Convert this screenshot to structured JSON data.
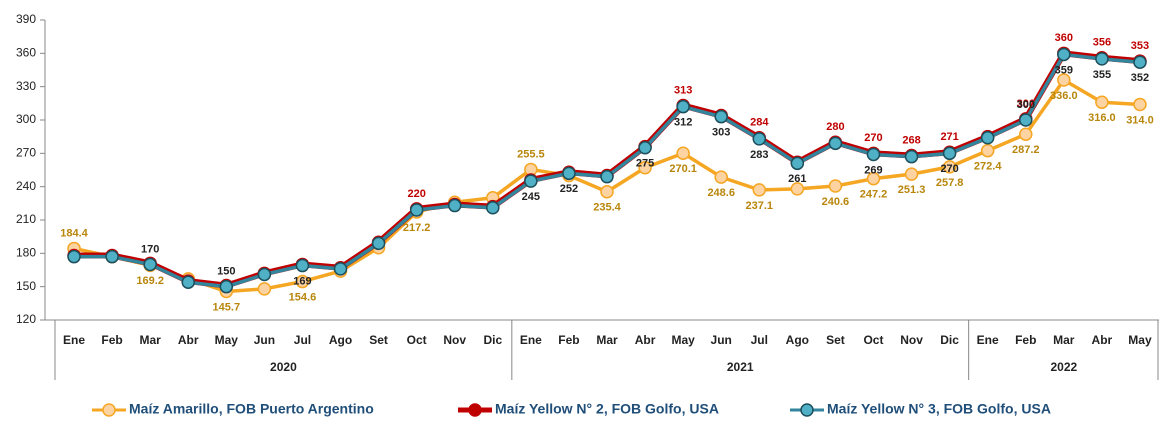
{
  "chart_data": {
    "type": "line",
    "categories": [
      "Ene",
      "Feb",
      "Mar",
      "Abr",
      "May",
      "Jun",
      "Jul",
      "Ago",
      "Set",
      "Oct",
      "Nov",
      "Dic",
      "Ene",
      "Feb",
      "Mar",
      "Abr",
      "May",
      "Jun",
      "Jul",
      "Ago",
      "Set",
      "Oct",
      "Nov",
      "Dic",
      "Ene",
      "Feb",
      "Mar",
      "Abr",
      "May"
    ],
    "year_groups": [
      {
        "label": "2020",
        "months": 12
      },
      {
        "label": "2021",
        "months": 12
      },
      {
        "label": "2022",
        "months": 5
      }
    ],
    "ylim": [
      120,
      390
    ],
    "yticks": [
      120,
      150,
      180,
      210,
      240,
      270,
      300,
      330,
      360,
      390
    ],
    "grid": false,
    "legend": "bottom",
    "series": [
      {
        "name": "Maíz Amarillo, FOB Puerto Argentino",
        "color": "#f5a623",
        "marker_fill": "#fcd3a1",
        "label_color": "#b8860b",
        "values": [
          184.4,
          177,
          169.2,
          157,
          145.7,
          148,
          154.6,
          164,
          185,
          217.2,
          226,
          230,
          255.5,
          250,
          235.4,
          257,
          270.1,
          248.6,
          237.1,
          238,
          240.6,
          247.2,
          251.3,
          257.8,
          272.4,
          287.2,
          336.0,
          316.0,
          314.0
        ],
        "value_labels": [
          "184.4",
          null,
          "169.2",
          null,
          "145.7",
          null,
          "154.6",
          null,
          null,
          "217.2",
          null,
          null,
          "255.5",
          null,
          "235.4",
          null,
          "270.1",
          "248.6",
          "237.1",
          null,
          "240.6",
          "247.2",
          "251.3",
          "257.8",
          "272.4",
          "287.2",
          "336.0",
          "316.0",
          "314.0"
        ]
      },
      {
        "name": "Maíz Yellow N° 2, FOB Golfo, USA",
        "color": "#c00000",
        "marker_fill": "#c00000",
        "label_color": "#c00000",
        "values": [
          178,
          178,
          171,
          155,
          151,
          162,
          170,
          167,
          190,
          220,
          224,
          222,
          246,
          253,
          250,
          276,
          313,
          304,
          284,
          262,
          280,
          270,
          268,
          271,
          285,
          301,
          360,
          356,
          353
        ],
        "value_labels": [
          null,
          null,
          null,
          null,
          null,
          null,
          null,
          null,
          null,
          "220",
          null,
          null,
          null,
          null,
          null,
          null,
          "313",
          null,
          "284",
          null,
          "280",
          "270",
          "268",
          "271",
          null,
          "301",
          "360",
          "356",
          "353"
        ]
      },
      {
        "name": "Maíz Yellow N° 3, FOB Golfo, USA",
        "color": "#31859c",
        "marker_fill": "#4fb0c6",
        "label_color": "#222222",
        "values": [
          177,
          177,
          170,
          154,
          150,
          161,
          169,
          166,
          189,
          219,
          223,
          221,
          245,
          252,
          249,
          275,
          312,
          303,
          283,
          261,
          279,
          269,
          267,
          270,
          284,
          300,
          359,
          355,
          352
        ],
        "value_labels": [
          null,
          null,
          "170",
          null,
          "150",
          null,
          "169",
          null,
          null,
          null,
          null,
          null,
          "245",
          "252",
          null,
          "275",
          "312",
          "303",
          "283",
          "261",
          null,
          "269",
          null,
          "270",
          null,
          "300",
          "359",
          "355",
          "352"
        ]
      }
    ]
  }
}
